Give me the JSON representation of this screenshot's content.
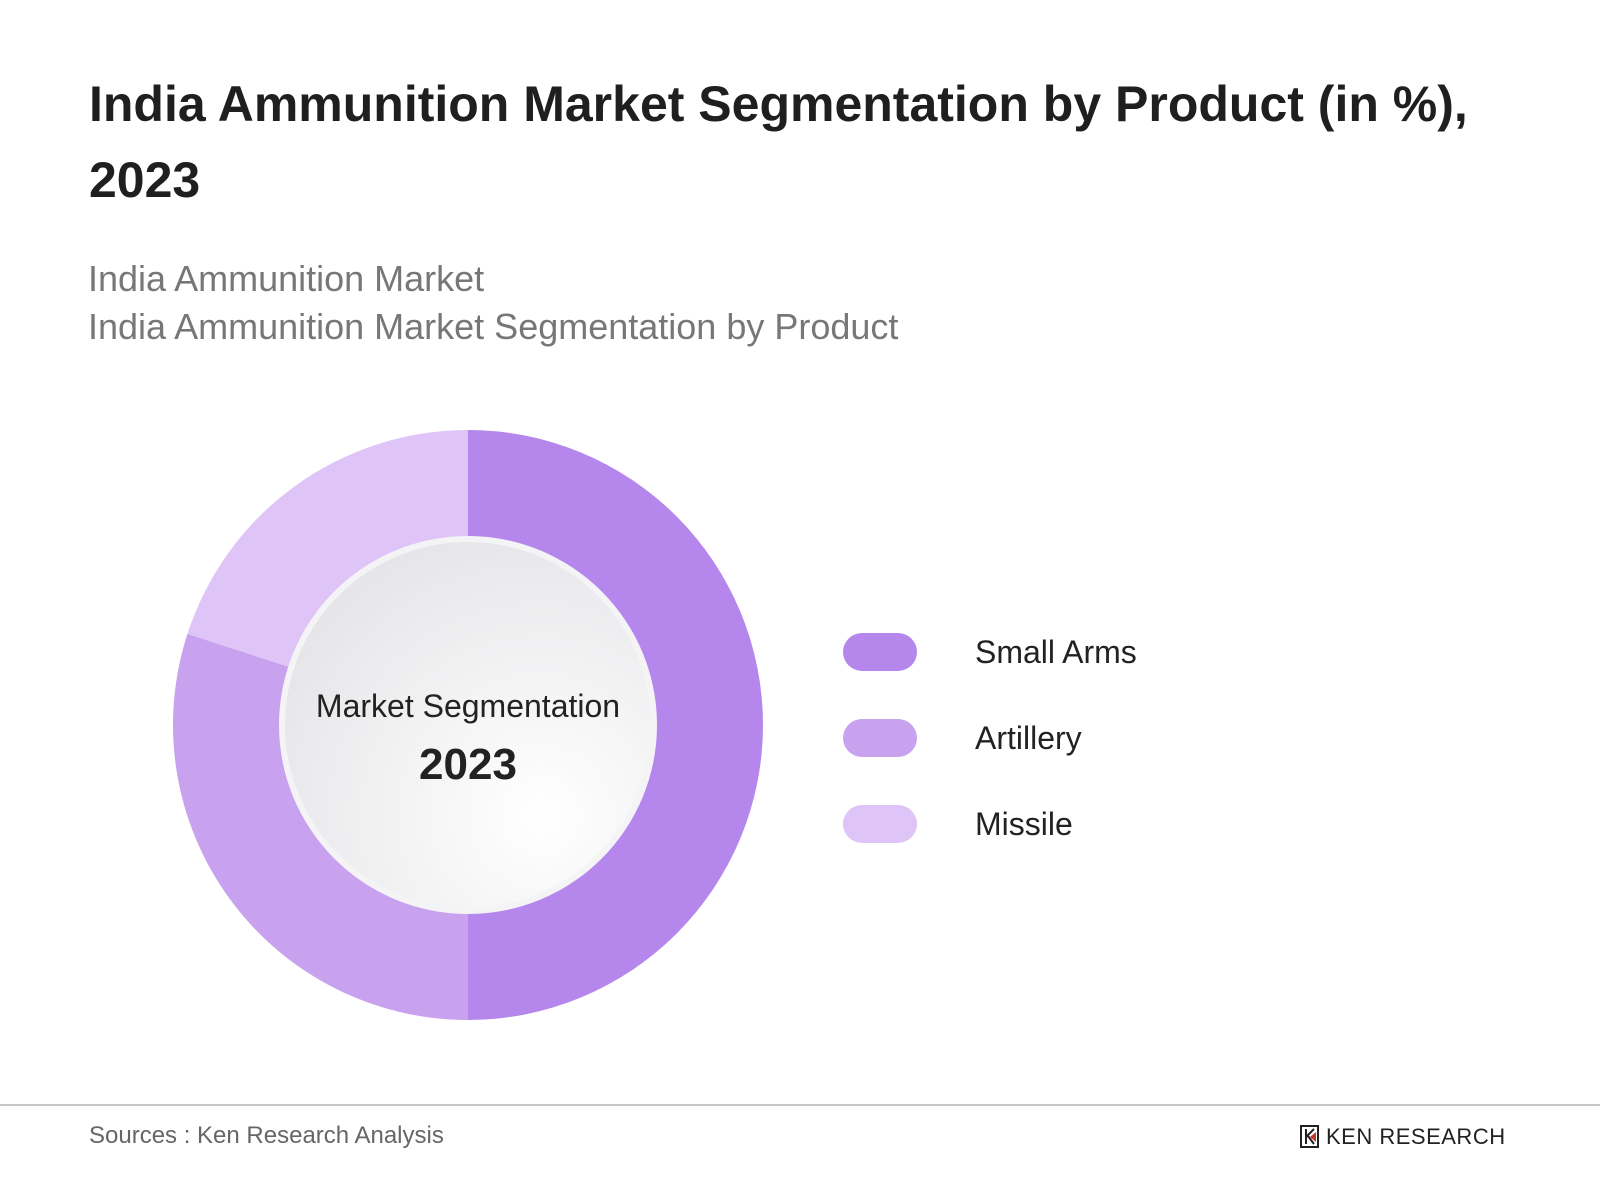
{
  "title": "India Ammunition Market Segmentation by Product (in %), 2023",
  "subtitles": [
    "India Ammunition Market",
    "India Ammunition Market Segmentation by Product"
  ],
  "chart_data": {
    "type": "pie",
    "variant": "donut",
    "title": "India Ammunition Market Segmentation by Product (in %), 2023",
    "center_label": "Market Segmentation",
    "center_value": "2023",
    "categories": [
      "Small Arms",
      "Artillery",
      "Missile"
    ],
    "values": [
      50,
      30,
      20
    ],
    "colors": [
      "#b586ec",
      "#c9a2ef",
      "#dfc5f7"
    ],
    "legend_placement": "right"
  },
  "footer": {
    "source": "Sources : Ken Research Analysis",
    "logo": "KEN RESEARCH"
  }
}
